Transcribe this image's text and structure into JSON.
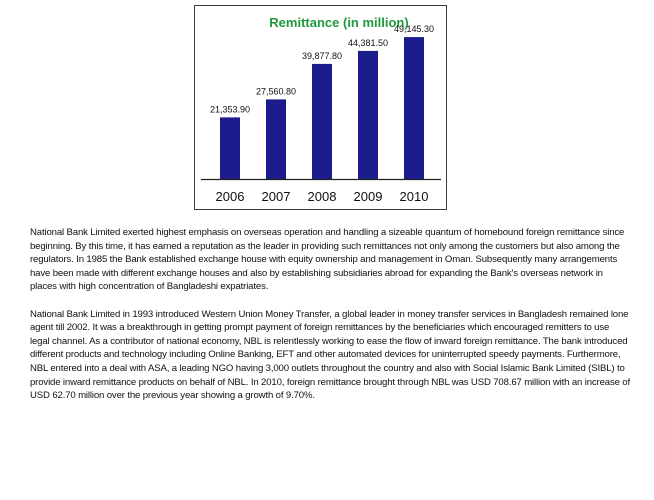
{
  "chart_data": {
    "type": "bar",
    "title": "Remittance  (in million)",
    "categories": [
      "2006",
      "2007",
      "2008",
      "2009",
      "2010"
    ],
    "values": [
      21353.9,
      27560.8,
      39877.8,
      44381.5,
      49145.3
    ],
    "value_labels": [
      "21,353.90",
      "27,560.80",
      "39,877.80",
      "44,381.50",
      "49,145.30"
    ],
    "ylim": [
      0,
      53000
    ],
    "xlabel": "",
    "ylabel": "",
    "grid": false,
    "colors": {
      "bar": "#1c1c8c",
      "title": "#1f9a3c",
      "axis": "#222222"
    }
  },
  "paragraphs": [
    "National Bank Limited exerted highest emphasis on overseas operation and handling a sizeable quantum of homebound foreign remittance since beginning. By this time, it has earned a reputation as the leader in providing such remittances not only among the customers but also among the regulators. In 1985 the Bank established exchange house with equity ownership and management in Oman. Subsequently many arrangements have been made with different exchange houses and also by establishing subsidiaries abroad for expanding the Bank's overseas network in places with high concentration of Bangladeshi expatriates.",
    "National Bank Limited in 1993 introduced Western Union Money Transfer, a global leader in money transfer services in Bangladesh remained lone agent till 2002. It was a breakthrough in getting prompt payment of foreign remittances by the beneficiaries which encouraged remitters to use legal channel. As a contributor of national economy, NBL is relentlessly working to ease the flow of inward foreign remittance. The bank introduced different products and technology including Online Banking, EFT and other automated devices for uninterrupted speedy payments. Furthermore, NBL entered into a deal with ASA, a leading NGO having 3,000 outlets throughout the country and also with Social Islamic Bank Limited (SIBL) to provide inward remittance products on behalf of NBL. In 2010, foreign remittance brought through NBL was USD 708.67 million with an increase of USD 62.70 million over the previous year showing a growth of 9.70%."
  ]
}
